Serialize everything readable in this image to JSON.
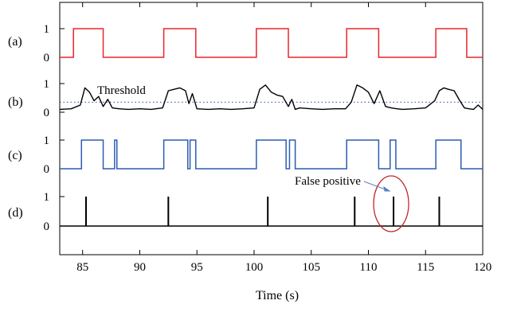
{
  "colors": {
    "panel_a": "#e8262b",
    "panel_b": "#000000",
    "panel_c": "#2b5cb3",
    "panel_d": "#000000",
    "threshold_line": "#2b4fa8",
    "false_positive": "#c0282d",
    "arrow": "#5a7fc0"
  },
  "chart_data": {
    "type": "line",
    "xlabel": "Time (s)",
    "xlim": [
      83,
      120
    ],
    "x_ticks": [
      85,
      90,
      95,
      100,
      105,
      110,
      115,
      120
    ],
    "x_tick_labels": [
      "85",
      "90",
      "95",
      "100",
      "105",
      "110",
      "115",
      "120"
    ],
    "grid": false,
    "panels": [
      {
        "label": "(a)",
        "kind": "step",
        "y_tick_labels": [
          "1",
          "0"
        ],
        "high_intervals": [
          [
            84.2,
            86.8
          ],
          [
            92.1,
            94.9
          ],
          [
            100.2,
            103.0
          ],
          [
            108.1,
            110.9
          ],
          [
            115.9,
            118.6
          ]
        ]
      },
      {
        "label": "(b)",
        "kind": "signal",
        "y_tick_labels": [
          "1",
          "0"
        ],
        "threshold": 0.35,
        "threshold_label": "Threshold",
        "x": [
          83.0,
          84.0,
          84.8,
          85.2,
          85.6,
          86.0,
          86.4,
          86.8,
          87.2,
          87.6,
          88.2,
          89.0,
          90.0,
          91.0,
          92.0,
          92.5,
          93.0,
          93.5,
          94.0,
          94.3,
          94.6,
          95.0,
          96.0,
          97.0,
          98.0,
          99.0,
          100.0,
          100.5,
          101.0,
          101.5,
          102.0,
          102.5,
          103.0,
          103.3,
          103.6,
          104.0,
          105.0,
          106.0,
          107.0,
          108.0,
          108.5,
          109.0,
          109.5,
          110.0,
          110.5,
          111.0,
          111.5,
          112.0,
          112.5,
          113.0,
          114.0,
          115.0,
          115.8,
          116.2,
          116.6,
          117.0,
          117.5,
          118.0,
          118.4,
          118.8,
          119.2,
          119.6,
          120.0
        ],
        "y": [
          0.1,
          0.12,
          0.25,
          0.85,
          0.7,
          0.4,
          0.55,
          0.2,
          0.45,
          0.15,
          0.12,
          0.1,
          0.12,
          0.1,
          0.15,
          0.75,
          0.8,
          0.85,
          0.75,
          0.3,
          0.65,
          0.12,
          0.1,
          0.12,
          0.1,
          0.12,
          0.15,
          0.8,
          0.95,
          0.7,
          0.6,
          0.55,
          0.2,
          0.45,
          0.1,
          0.15,
          0.12,
          0.1,
          0.12,
          0.12,
          0.35,
          0.95,
          0.85,
          0.7,
          0.3,
          0.75,
          0.2,
          0.15,
          0.12,
          0.1,
          0.12,
          0.15,
          0.4,
          0.75,
          0.85,
          0.8,
          0.75,
          0.4,
          0.15,
          0.12,
          0.1,
          0.25,
          0.1
        ]
      },
      {
        "label": "(c)",
        "kind": "step",
        "y_tick_labels": [
          "1",
          "0"
        ],
        "high_intervals": [
          [
            84.9,
            86.8
          ],
          [
            87.8,
            88.0
          ],
          [
            92.1,
            94.2
          ],
          [
            94.4,
            94.9
          ],
          [
            100.2,
            102.8
          ],
          [
            103.1,
            103.6
          ],
          [
            108.1,
            110.9
          ],
          [
            111.9,
            112.4
          ],
          [
            115.9,
            118.1
          ]
        ]
      },
      {
        "label": "(d)",
        "kind": "impulse",
        "y_tick_labels": [
          "1",
          "0"
        ],
        "events_x": [
          85.3,
          92.5,
          101.2,
          108.8,
          112.2,
          116.2
        ],
        "annotation": {
          "text": "False positive",
          "target_x": 112.2
        }
      }
    ]
  }
}
